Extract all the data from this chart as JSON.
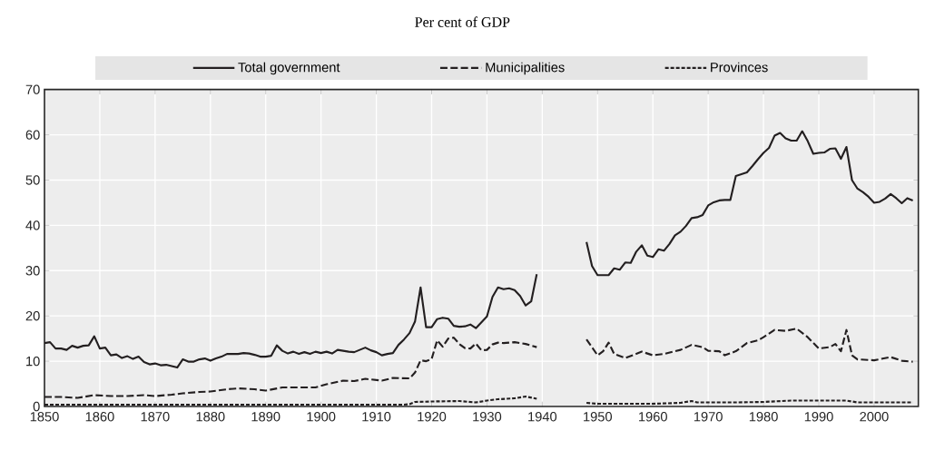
{
  "chart_data": {
    "type": "line",
    "subtitle": "Per cent of GDP",
    "xlim": [
      1850,
      2008
    ],
    "ylim": [
      0,
      70
    ],
    "xticks": [
      1850,
      1860,
      1870,
      1880,
      1890,
      1900,
      1910,
      1920,
      1930,
      1940,
      1950,
      1960,
      1970,
      1980,
      1990,
      2000
    ],
    "yticks": [
      0,
      10,
      20,
      30,
      40,
      50,
      60,
      70
    ],
    "grid": true,
    "legend": "top",
    "series": [
      {
        "name": "Total government",
        "color": "#231f20",
        "line_style": "solid",
        "x": [
          1850,
          1851,
          1852,
          1853,
          1854,
          1855,
          1856,
          1857,
          1858,
          1859,
          1860,
          1861,
          1862,
          1863,
          1864,
          1865,
          1866,
          1867,
          1868,
          1869,
          1870,
          1871,
          1872,
          1873,
          1874,
          1875,
          1876,
          1877,
          1878,
          1879,
          1880,
          1881,
          1882,
          1883,
          1884,
          1885,
          1886,
          1887,
          1888,
          1889,
          1890,
          1891,
          1892,
          1893,
          1894,
          1895,
          1896,
          1897,
          1898,
          1899,
          1900,
          1901,
          1902,
          1903,
          1904,
          1905,
          1906,
          1907,
          1908,
          1909,
          1910,
          1911,
          1912,
          1913,
          1914,
          1915,
          1916,
          1917,
          1918,
          1919,
          1920,
          1921,
          1922,
          1923,
          1924,
          1925,
          1926,
          1927,
          1928,
          1929,
          1930,
          1931,
          1932,
          1933,
          1934,
          1935,
          1936,
          1937,
          1938,
          1939,
          1944,
          1948,
          1949,
          1950,
          1951,
          1952,
          1953,
          1954,
          1955,
          1956,
          1957,
          1958,
          1959,
          1960,
          1961,
          1962,
          1963,
          1964,
          1965,
          1966,
          1967,
          1968,
          1969,
          1970,
          1971,
          1972,
          1973,
          1974,
          1975,
          1976,
          1977,
          1978,
          1979,
          1980,
          1981,
          1982,
          1983,
          1984,
          1985,
          1986,
          1987,
          1988,
          1989,
          1990,
          1991,
          1992,
          1993,
          1994,
          1995,
          1996,
          1997,
          1998,
          1999,
          2000,
          2001,
          2002,
          2003,
          2004,
          2005,
          2006,
          2007
        ],
        "values": [
          14,
          14.2,
          12.8,
          12.8,
          12.5,
          13.4,
          13,
          13.4,
          13.5,
          15.5,
          12.8,
          13,
          11.3,
          11.5,
          10.7,
          11.1,
          10.5,
          11,
          9.8,
          9.3,
          9.5,
          9.1,
          9.2,
          8.9,
          8.6,
          10.4,
          9.9,
          9.9,
          10.4,
          10.6,
          10.1,
          10.6,
          11,
          11.6,
          11.6,
          11.6,
          11.8,
          11.7,
          11.4,
          11,
          11,
          11.2,
          13.5,
          12.3,
          11.7,
          12.1,
          11.6,
          12,
          11.6,
          12.1,
          11.8,
          12.1,
          11.7,
          12.5,
          12.3,
          12.1,
          12,
          12.5,
          13,
          12.4,
          12,
          11.3,
          11.6,
          11.8,
          13.6,
          14.8,
          16.2,
          18.8,
          26.3,
          17.5,
          17.5,
          19.3,
          19.6,
          19.4,
          17.8,
          17.6,
          17.7,
          18.1,
          17.3,
          18.6,
          19.9,
          24.2,
          26.3,
          25.9,
          26.1,
          25.7,
          24.4,
          22.3,
          23.2,
          29.2,
          null,
          36.3,
          31,
          29,
          29,
          29,
          30.5,
          30.2,
          31.8,
          31.7,
          34.2,
          35.6,
          33.3,
          33,
          34.7,
          34.4,
          35.9,
          37.8,
          38.6,
          39.9,
          41.6,
          41.8,
          42.3,
          44.4,
          45.1,
          45.5,
          45.6,
          45.6,
          50.9,
          51.3,
          51.7,
          53.1,
          54.6,
          56,
          57.1,
          59.8,
          60.4,
          59.2,
          58.7,
          58.7,
          60.8,
          58.6,
          55.8,
          56,
          56.1,
          56.9,
          57,
          54.7,
          57.3,
          50,
          48.1,
          47.3,
          46.3,
          45,
          45.2,
          45.9,
          46.9,
          46,
          44.9,
          46,
          45.5
        ]
      },
      {
        "name": "Municipalities",
        "color": "#231f20",
        "line_style": "dashed",
        "x": [
          1850,
          1853,
          1856,
          1859,
          1862,
          1865,
          1868,
          1870,
          1873,
          1875,
          1878,
          1880,
          1883,
          1885,
          1888,
          1890,
          1893,
          1896,
          1899,
          1901,
          1904,
          1906,
          1908,
          1911,
          1913,
          1916,
          1917,
          1918,
          1919,
          1920,
          1921,
          1922,
          1923,
          1924,
          1925,
          1926,
          1927,
          1928,
          1929,
          1930,
          1931,
          1932,
          1933,
          1935,
          1937,
          1939,
          1944,
          1948,
          1950,
          1951,
          1952,
          1953,
          1955,
          1958,
          1960,
          1962,
          1965,
          1967,
          1969,
          1970,
          1972,
          1973,
          1975,
          1977,
          1979,
          1980,
          1982,
          1984,
          1986,
          1988,
          1990,
          1992,
          1993,
          1994,
          1995,
          1996,
          1997,
          2000,
          2003,
          2005,
          2007
        ],
        "values": [
          2.1,
          2.1,
          1.9,
          2.5,
          2.3,
          2.3,
          2.5,
          2.3,
          2.6,
          2.9,
          3.2,
          3.3,
          3.8,
          4.0,
          3.8,
          3.5,
          4.2,
          4.2,
          4.2,
          4.9,
          5.7,
          5.6,
          6.1,
          5.7,
          6.3,
          6.2,
          7.5,
          10.2,
          10.0,
          10.5,
          14.6,
          13.2,
          15,
          15.2,
          13.8,
          12.9,
          12.8,
          13.9,
          12.4,
          12.5,
          13.7,
          14.1,
          14,
          14.2,
          13.8,
          13.1,
          null,
          14.8,
          11.3,
          12.2,
          14.1,
          11.6,
          10.7,
          12.1,
          11.3,
          11.6,
          12.5,
          13.6,
          13.1,
          12.3,
          12.2,
          11.3,
          12.2,
          14,
          14.6,
          15.3,
          16.9,
          16.7,
          17.2,
          15.3,
          12.8,
          13.1,
          13.8,
          12.2,
          16.9,
          11.3,
          10.4,
          10.2,
          10.9,
          10.1,
          9.9
        ]
      },
      {
        "name": "Provinces",
        "color": "#231f20",
        "line_style": "dotted",
        "x": [
          1850,
          1860,
          1870,
          1880,
          1890,
          1900,
          1910,
          1915,
          1916,
          1917,
          1920,
          1925,
          1928,
          1930,
          1932,
          1935,
          1937,
          1939,
          1944,
          1948,
          1950,
          1955,
          1960,
          1965,
          1967,
          1968,
          1975,
          1980,
          1985,
          1990,
          1995,
          1997,
          2000,
          2007
        ],
        "values": [
          0.4,
          0.4,
          0.4,
          0.4,
          0.4,
          0.4,
          0.4,
          0.4,
          0.5,
          1.0,
          1.1,
          1.2,
          0.9,
          1.3,
          1.6,
          1.8,
          2.2,
          1.7,
          null,
          0.8,
          0.6,
          0.6,
          0.6,
          0.8,
          1.2,
          0.9,
          0.9,
          1.0,
          1.3,
          1.3,
          1.3,
          0.9,
          0.9,
          0.9
        ]
      }
    ]
  }
}
